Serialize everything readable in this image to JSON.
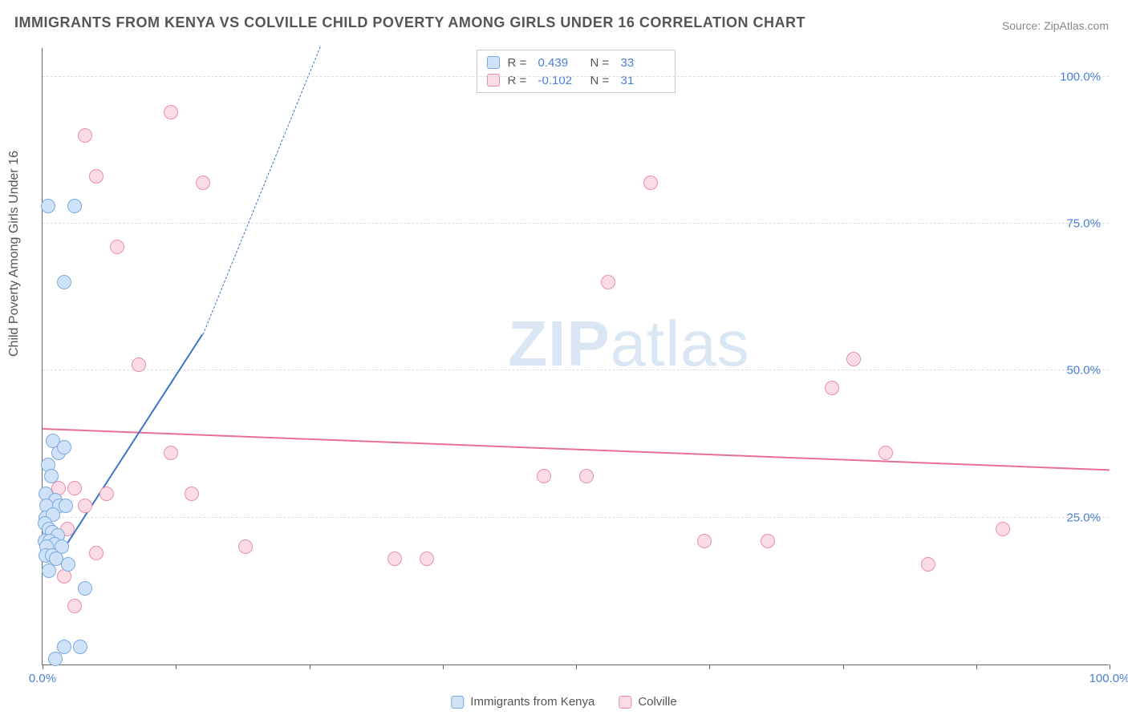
{
  "title": "IMMIGRANTS FROM KENYA VS COLVILLE CHILD POVERTY AMONG GIRLS UNDER 16 CORRELATION CHART",
  "source": "Source: ZipAtlas.com",
  "y_axis_label": "Child Poverty Among Girls Under 16",
  "watermark": {
    "bold": "ZIP",
    "light": "atlas",
    "color": "#dbe6f5"
  },
  "chart": {
    "type": "scatter",
    "background_color": "#ffffff",
    "grid_color": "#dddddd",
    "axis_color": "#666666",
    "xlim": [
      0,
      100
    ],
    "ylim": [
      0,
      105
    ],
    "y_gridlines": [
      25,
      50,
      75,
      100
    ],
    "y_tick_labels": [
      "25.0%",
      "50.0%",
      "75.0%",
      "100.0%"
    ],
    "x_tick_positions": [
      0,
      12.5,
      25,
      37.5,
      50,
      62.5,
      75,
      87.5,
      100
    ],
    "x_axis_end_labels": {
      "left": "0.0%",
      "right": "100.0%"
    },
    "tick_label_color": "#4a7fd8",
    "tick_label_fontsize": 15,
    "marker_radius": 9,
    "marker_stroke_width": 1.5,
    "series": [
      {
        "name": "Immigrants from Kenya",
        "fill": "#cfe2f7",
        "stroke": "#7aa9e0",
        "line_color": "#3b74c9",
        "r_value": "0.439",
        "n_value": "33",
        "trend": {
          "x1": 0.4,
          "y1": 15,
          "x2": 15,
          "y2": 56,
          "dash_to_x": 26,
          "dash_to_y": 105
        },
        "points": [
          [
            0.5,
            78
          ],
          [
            3,
            78
          ],
          [
            2,
            65
          ],
          [
            1,
            38
          ],
          [
            1.5,
            36
          ],
          [
            2,
            37
          ],
          [
            0.5,
            34
          ],
          [
            0.8,
            32
          ],
          [
            0.3,
            29
          ],
          [
            1.2,
            28
          ],
          [
            0.4,
            27
          ],
          [
            1.6,
            27
          ],
          [
            2.2,
            27
          ],
          [
            0.3,
            25
          ],
          [
            1.0,
            25.5
          ],
          [
            0.2,
            24
          ],
          [
            0.6,
            23
          ],
          [
            0.9,
            22.5
          ],
          [
            1.4,
            22
          ],
          [
            0.2,
            21
          ],
          [
            0.7,
            21
          ],
          [
            1.1,
            20.5
          ],
          [
            0.4,
            20
          ],
          [
            1.8,
            20
          ],
          [
            0.3,
            18.5
          ],
          [
            0.9,
            18.5
          ],
          [
            1.3,
            18
          ],
          [
            2.4,
            17
          ],
          [
            0.6,
            16
          ],
          [
            4,
            13
          ],
          [
            2,
            3
          ],
          [
            3.5,
            3
          ],
          [
            1.2,
            1
          ]
        ]
      },
      {
        "name": "Colville",
        "fill": "#fbdce4",
        "stroke": "#e88fa8",
        "line_color": "#e86f93",
        "r_value": "-0.102",
        "n_value": "31",
        "trend": {
          "x1": 0,
          "y1": 40,
          "x2": 100,
          "y2": 33
        },
        "points": [
          [
            12,
            94
          ],
          [
            4,
            90
          ],
          [
            5,
            83
          ],
          [
            15,
            82
          ],
          [
            57,
            82
          ],
          [
            7,
            71
          ],
          [
            53,
            65
          ],
          [
            9,
            51
          ],
          [
            76,
            52
          ],
          [
            74,
            47
          ],
          [
            12,
            36
          ],
          [
            79,
            36
          ],
          [
            14,
            29
          ],
          [
            47,
            32
          ],
          [
            51,
            32
          ],
          [
            3,
            30
          ],
          [
            6,
            29
          ],
          [
            4,
            27
          ],
          [
            1.5,
            30
          ],
          [
            90,
            23
          ],
          [
            62,
            21
          ],
          [
            68,
            21
          ],
          [
            19,
            20
          ],
          [
            33,
            18
          ],
          [
            36,
            18
          ],
          [
            5,
            19
          ],
          [
            2.3,
            23
          ],
          [
            2,
            15
          ],
          [
            3,
            10
          ],
          [
            83,
            17
          ],
          [
            1,
            22
          ]
        ]
      }
    ]
  },
  "legend_top": {
    "r_label": "R  =",
    "n_label": "N  ="
  },
  "legend_bottom": [
    {
      "label": "Immigrants from Kenya",
      "fill": "#cfe2f7",
      "stroke": "#7aa9e0"
    },
    {
      "label": "Colville",
      "fill": "#fbdce4",
      "stroke": "#e88fa8"
    }
  ]
}
